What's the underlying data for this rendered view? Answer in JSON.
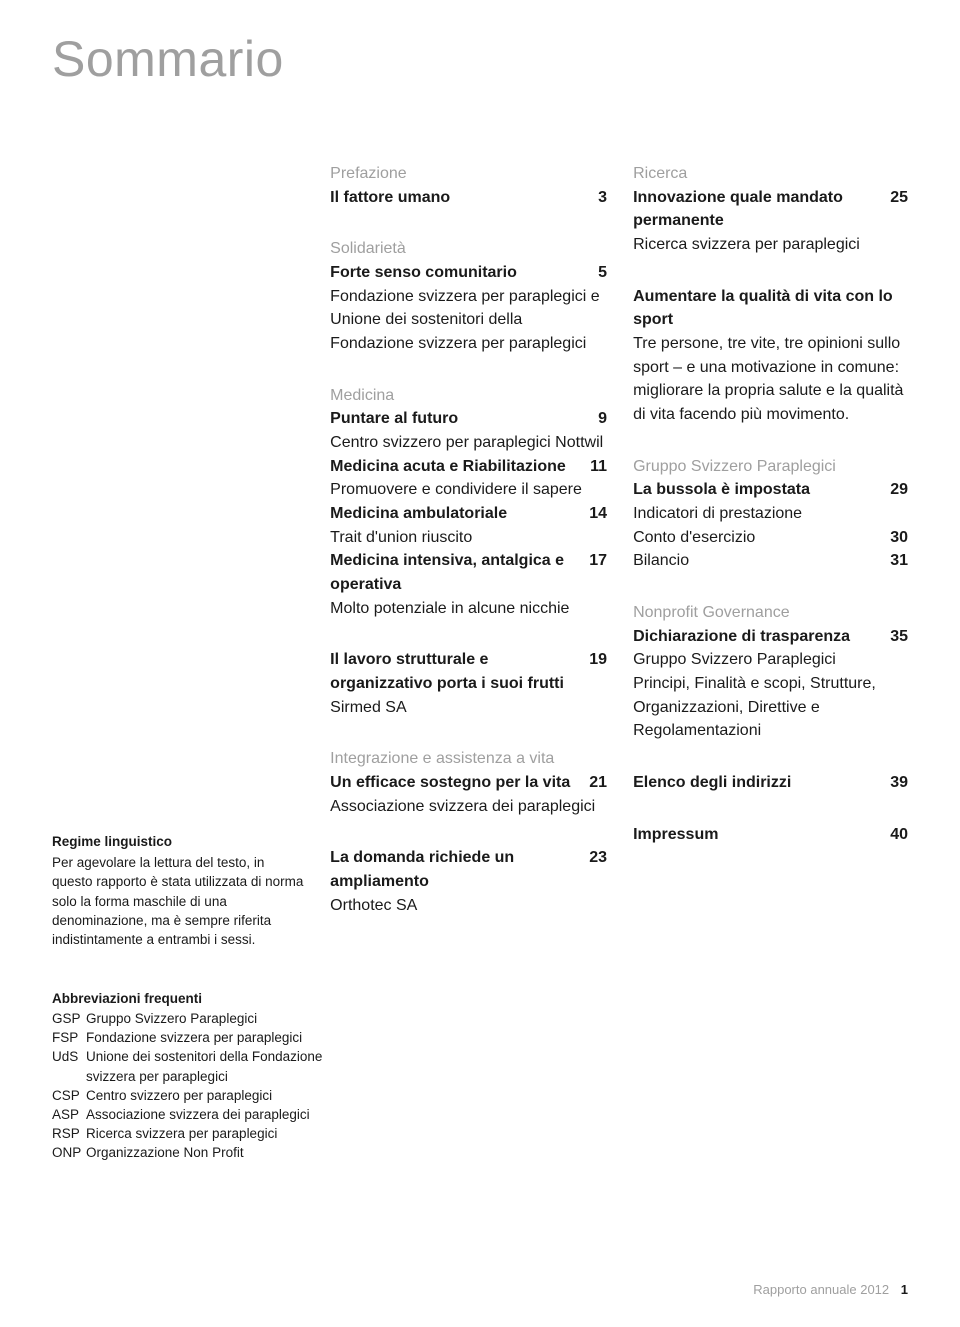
{
  "title": "Sommario",
  "colors": {
    "muted": "#9f9f9f",
    "text": "#1a1a1a",
    "background": "#ffffff"
  },
  "note": {
    "heading": "Regime linguistico",
    "body": "Per agevolare la lettura del testo, in questo rapporto è stata utilizzata di norma solo la forma maschile di una denominazione, ma è sempre riferita indistintamente a entrambi i sessi."
  },
  "col_mid": [
    {
      "head": "Prefazione",
      "items": [
        {
          "title": "Il fattore umano",
          "page": "3"
        }
      ]
    },
    {
      "head": "Solidarietà",
      "items": [
        {
          "title": "Forte senso comunitario",
          "page": "5"
        },
        {
          "sub": "Fondazione svizzera per paraplegici e Unione dei sostenitori della Fondazione svizzera per paraplegici"
        }
      ]
    },
    {
      "head": "Medicina",
      "items": [
        {
          "title": "Puntare al futuro",
          "page": "9"
        },
        {
          "sub": "Centro svizzero per paraplegici Nottwil"
        },
        {
          "title": "Medicina acuta e Riabilitazione",
          "page": "11"
        },
        {
          "sub": "Promuovere e condividere il sapere"
        },
        {
          "title": "Medicina ambulatoriale",
          "page": "14"
        },
        {
          "sub": "Trait d'union riuscito"
        },
        {
          "title": "Medicina intensiva, antalgica e operativa",
          "page": "17"
        },
        {
          "sub": "Molto potenziale in alcune nicchie"
        }
      ]
    },
    {
      "items": [
        {
          "title": "Il lavoro strutturale e organizzativo porta i suoi frutti",
          "page": "19"
        },
        {
          "sub": "Sirmed SA"
        }
      ]
    },
    {
      "head": "Integrazione e assistenza a vita",
      "items": [
        {
          "title": "Un efficace sostegno per la vita",
          "page": "21"
        },
        {
          "sub": "Associazione svizzera dei paraplegici"
        }
      ]
    },
    {
      "items": [
        {
          "title": "La domanda richiede un ampliamento",
          "page": "23"
        },
        {
          "sub": "Orthotec SA"
        }
      ]
    }
  ],
  "col_right": [
    {
      "head": "Ricerca",
      "items": [
        {
          "title": "Innovazione quale mandato permanente",
          "page": "25"
        },
        {
          "sub": "Ricerca svizzera per paraplegici"
        }
      ]
    },
    {
      "items": [
        {
          "title": "Aumentare la qualità di vita con lo sport"
        },
        {
          "sub": "Tre persone, tre vite, tre opinioni sullo sport – e una motivazione in comune: migliorare la propria salute e la qualità di vita facendo più movimento."
        }
      ]
    },
    {
      "head": "Gruppo Svizzero Paraplegici",
      "items": [
        {
          "title": "La bussola è impostata",
          "page": "29"
        },
        {
          "sub": "Indicatori di prestazione"
        },
        {
          "sub": "Conto d'esercizio",
          "page": "30"
        },
        {
          "sub": "Bilancio",
          "page": "31"
        }
      ]
    },
    {
      "head": "Nonprofit Governance",
      "items": [
        {
          "title": "Dichiarazione di trasparenza",
          "page": "35"
        },
        {
          "sub": "Gruppo Svizzero Paraplegici"
        },
        {
          "sub": "Principi, Finalità e scopi, Strutture, Organizzazioni, Direttive e Regolamentazioni"
        }
      ]
    },
    {
      "items": [
        {
          "title": "Elenco degli indirizzi",
          "page": "39"
        }
      ]
    },
    {
      "items": [
        {
          "title": "Impressum",
          "page": "40"
        }
      ]
    }
  ],
  "abbr": {
    "heading": "Abbreviazioni frequenti",
    "rows": [
      {
        "code": "GSP",
        "def": "Gruppo Svizzero Paraplegici"
      },
      {
        "code": "FSP",
        "def": "Fondazione svizzera per paraplegici"
      },
      {
        "code": "UdS",
        "def": "Unione dei sostenitori della Fondazione svizzera per paraplegici"
      },
      {
        "code": "CSP",
        "def": "Centro svizzero per paraplegici"
      },
      {
        "code": "ASP",
        "def": "Associazione svizzera dei paraplegici"
      },
      {
        "code": "RSP",
        "def": "Ricerca svizzera per paraplegici"
      },
      {
        "code": "ONP",
        "def": "Organizzazione Non Profit"
      }
    ]
  },
  "footer": {
    "text": "Rapporto annuale 2012",
    "page": "1"
  }
}
